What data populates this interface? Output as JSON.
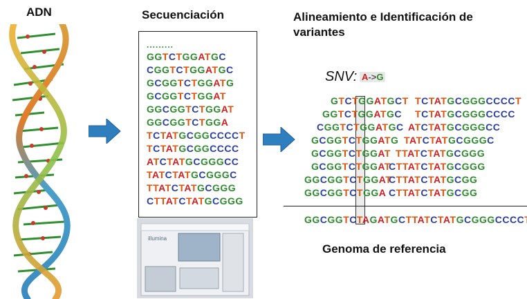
{
  "labels": {
    "dna": "ADN",
    "sequencing": "Secuenciación",
    "alignment": "Alineamiento e Identificación de variantes",
    "reference": "Genoma de referencia",
    "snv": "SNV:",
    "snv_change": "A->G",
    "dots": ".........",
    "machine_brand": "illumina"
  },
  "reads": [
    "GGTCTGGATGC",
    "CGGTCTGGATGC",
    "GCGGTCTGGATG",
    "GCGGTCTGGAT",
    "GGCGGTCTGGAT",
    "GGCGGTCTGGA",
    "TCTATGCGGCCCCT",
    "TCTATGCGGCCCC",
    "ATCTATGCGGGCC",
    "TATCTATGCGGGC",
    "TTATCTATGCGGG",
    "CTTATCTATGCGGG"
  ],
  "aligned_left": [
    "GTCTGGATGCT",
    "GGTCTGGATGC",
    "CGGTCTGGATGC",
    "GCGGTCTGGATG",
    "GCGGTCTGGAT",
    "GCGGTCTGGAT",
    "GGCGGTCTGGAT",
    "GGCGGTCTGGA"
  ],
  "aligned_right": [
    "TCTATGCGGGCCCCT",
    "TCTATGCGGGCCCC",
    "ATCTATGCGGGCC",
    "TATCTATGCGGGC",
    "TTATCTATGCGGG",
    "CTTATCTATGCGGG",
    "CTTATCTATGCGG",
    "CTTATCTATGCGG"
  ],
  "reference_seq": "GGCGGTCTAGATGCTTATCTATGCGGGCCCCT",
  "colors": {
    "G": "#2e8b2e",
    "C": "#2a3fa0",
    "T": "#e0520a",
    "A": "#d21e1e",
    "arrow": "#2f7fbf"
  }
}
